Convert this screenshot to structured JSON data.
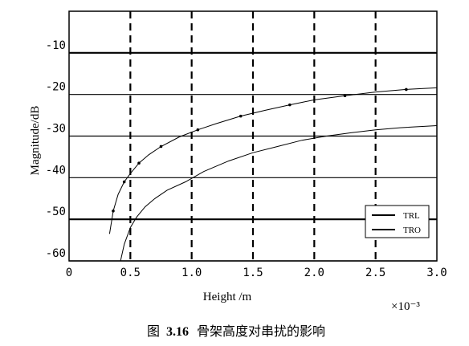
{
  "chart_data": {
    "type": "line",
    "xlabel": "Height /m",
    "ylabel": "Magnitude/dB",
    "x_multiplier": "×10⁻³",
    "xlim": [
      0,
      3.0
    ],
    "ylim": [
      -60,
      0
    ],
    "x_ticks": [
      0,
      0.5,
      1.0,
      1.5,
      2.0,
      2.5,
      3.0
    ],
    "x_tick_labels": [
      "0",
      "0.5",
      "1.0",
      "1.5",
      "2.0",
      "2.5",
      "3.0"
    ],
    "y_ticks": [
      -10,
      -20,
      -30,
      -40,
      -50,
      -60
    ],
    "y_tick_labels": [
      "-10",
      "-20",
      "-30",
      "-40",
      "-50",
      "-60"
    ],
    "grid": "solid horizontal lines at y ticks; dashed vertical lines at x ticks",
    "legend_position": "bottom-right",
    "series": [
      {
        "name": "TRL",
        "x": [
          0.33,
          0.36,
          0.4,
          0.45,
          0.5,
          0.57,
          0.65,
          0.75,
          0.9,
          1.05,
          1.2,
          1.4,
          1.6,
          1.8,
          2.0,
          2.25,
          2.5,
          2.75,
          3.0
        ],
        "y": [
          -53.5,
          -48,
          -44,
          -41,
          -39,
          -36.5,
          -34.5,
          -32.5,
          -30.2,
          -28.5,
          -27,
          -25.2,
          -23.8,
          -22.5,
          -21.3,
          -20.3,
          -19.4,
          -18.8,
          -18.4
        ],
        "markers": true
      },
      {
        "name": "TRO",
        "x": [
          0.42,
          0.45,
          0.5,
          0.55,
          0.62,
          0.7,
          0.8,
          0.95,
          1.1,
          1.3,
          1.5,
          1.7,
          1.9,
          2.1,
          2.3,
          2.5,
          2.7,
          3.0
        ],
        "y": [
          -60,
          -56,
          -52,
          -49.5,
          -47,
          -45,
          -43,
          -41,
          -38.5,
          -36,
          -34,
          -32.5,
          -31,
          -30,
          -29.2,
          -28.5,
          -28,
          -27.5
        ],
        "markers": false
      }
    ]
  },
  "caption": {
    "prefix": "图",
    "number": "3.16",
    "text": "骨架高度对串扰的影响"
  }
}
